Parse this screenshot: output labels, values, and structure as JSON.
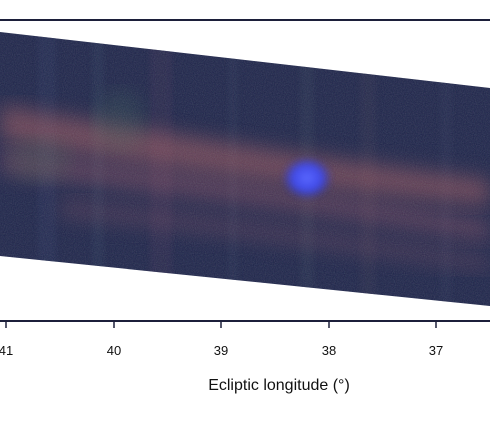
{
  "figure": {
    "x_axis": {
      "label": "Ecliptic longitude (°)",
      "ticks": [
        "41",
        "40",
        "39",
        "38",
        "37"
      ]
    },
    "colors": {
      "background": "#ffffff",
      "frame": "#1c1f3a",
      "band_base": "#1b2248",
      "dust_band": "#b35f5c",
      "source": "#3b4bff"
    }
  }
}
